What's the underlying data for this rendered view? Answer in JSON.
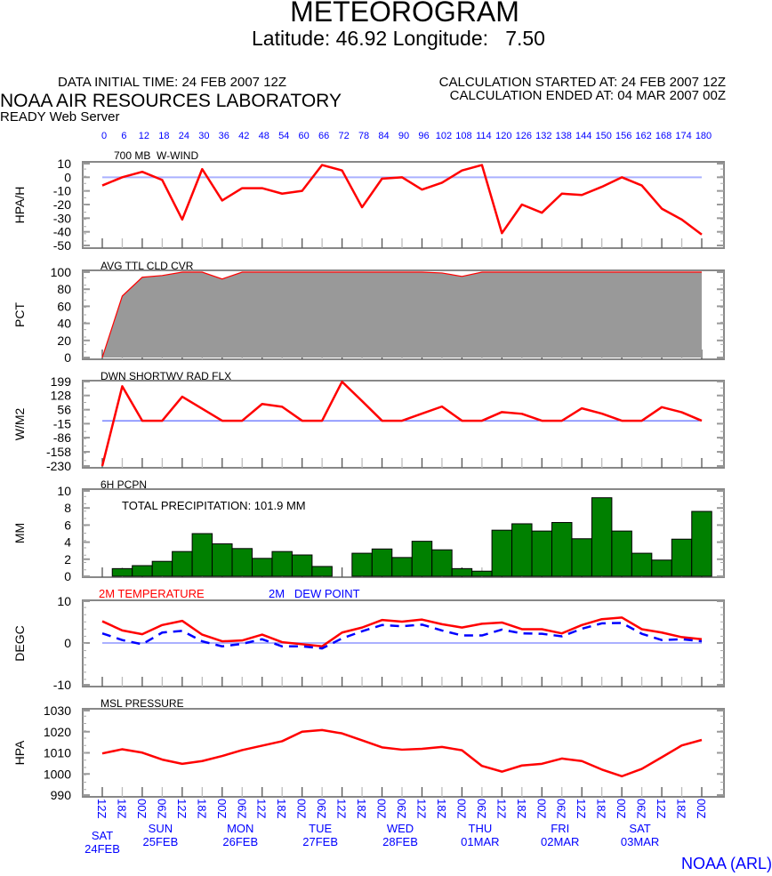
{
  "header": {
    "title": "METEOROGRAM",
    "subtitle": "Latitude: 46.92 Longitude:   7.50",
    "data_initial_time": "DATA INITIAL TIME: 24 FEB 2007 12Z",
    "organization": "NOAA AIR RESOURCES LABORATORY",
    "server": "READY Web Server",
    "calc_started": "CALCULATION STARTED AT: 24 FEB 2007 12Z",
    "calc_ended": "CALCULATION ENDED AT: 04 MAR 2007 00Z",
    "footer": "NOAA (ARL)"
  },
  "colors": {
    "line": "#ff0000",
    "dew": "#0000ff",
    "zero_line": "#aab0ff",
    "bars": "#008000",
    "cloud_fill": "#999999",
    "axis_labels": "#0000ff"
  },
  "x_axis": {
    "hours": [
      0,
      6,
      12,
      18,
      24,
      30,
      36,
      42,
      48,
      54,
      60,
      66,
      72,
      78,
      84,
      90,
      96,
      102,
      108,
      114,
      120,
      126,
      132,
      138,
      144,
      150,
      156,
      162,
      168,
      174,
      180
    ],
    "time_labels": [
      "12Z",
      "18Z",
      "00Z",
      "06Z",
      "12Z",
      "18Z",
      "00Z",
      "06Z",
      "12Z",
      "18Z",
      "00Z",
      "06Z",
      "12Z",
      "18Z",
      "00Z",
      "06Z",
      "12Z",
      "18Z",
      "00Z",
      "06Z",
      "12Z",
      "18Z",
      "00Z",
      "06Z",
      "12Z",
      "18Z",
      "00Z",
      "06Z",
      "12Z",
      "18Z",
      "00Z"
    ],
    "days": [
      {
        "day": "SAT",
        "date": "24FEB",
        "hour": 0
      },
      {
        "day": "SUN",
        "date": "25FEB",
        "hour": 18
      },
      {
        "day": "MON",
        "date": "26FEB",
        "hour": 42
      },
      {
        "day": "TUE",
        "date": "27FEB",
        "hour": 66
      },
      {
        "day": "WED",
        "date": "28FEB",
        "hour": 90
      },
      {
        "day": "THU",
        "date": "01MAR",
        "hour": 114
      },
      {
        "day": "FRI",
        "date": "02MAR",
        "hour": 138
      },
      {
        "day": "SAT",
        "date": "03MAR",
        "hour": 162
      }
    ]
  },
  "chart_data": [
    {
      "type": "line",
      "title": "700 MB  W-WIND",
      "ylabel": "HPA/H",
      "ylim": [
        -50,
        10
      ],
      "yticks": [
        10,
        0,
        -10,
        -20,
        -30,
        -40,
        -50
      ],
      "zero_line": true,
      "series": [
        {
          "values": [
            -6,
            0,
            4,
            -2,
            -31,
            6,
            -17,
            -8,
            -8,
            -12,
            -10,
            9,
            5,
            -22,
            -1,
            0,
            -9,
            -4,
            5,
            9,
            -41,
            -20,
            -26,
            -12,
            -13,
            -7,
            0,
            -6,
            -23,
            -31,
            -42
          ]
        }
      ]
    },
    {
      "type": "area",
      "title": "AVG TTL CLD CVR",
      "ylabel": "PCT",
      "ylim": [
        0,
        100
      ],
      "yticks": [
        100,
        80,
        60,
        40,
        20,
        0
      ],
      "series": [
        {
          "values": [
            0,
            72,
            94,
            96,
            100,
            100,
            92,
            100,
            100,
            100,
            100,
            100,
            100,
            100,
            100,
            100,
            100,
            99,
            95,
            100,
            100,
            100,
            100,
            100,
            100,
            100,
            100,
            100,
            100,
            100,
            100
          ]
        }
      ]
    },
    {
      "type": "line",
      "title": "DWN SHORTWV RAD FLX",
      "ylabel": "W/M2",
      "ylim": [
        -230,
        199
      ],
      "yticks": [
        199,
        128,
        56,
        -15,
        -86,
        -158,
        -230
      ],
      "zero_line": true,
      "series": [
        {
          "values": [
            -230,
            175,
            0,
            0,
            122,
            61,
            0,
            0,
            85,
            71,
            0,
            0,
            198,
            100,
            0,
            0,
            36,
            72,
            0,
            0,
            44,
            35,
            0,
            0,
            63,
            36,
            0,
            0,
            69,
            43,
            0
          ]
        }
      ]
    },
    {
      "type": "bar",
      "title": "6H PCPN",
      "ylabel": "MM",
      "ylim": [
        0,
        10
      ],
      "yticks": [
        10,
        8,
        6,
        4,
        2,
        0
      ],
      "annotation": "TOTAL PRECIPITATION: 101.9 MM",
      "series": [
        {
          "values": [
            0,
            0.9,
            1.25,
            1.75,
            2.9,
            5.0,
            3.8,
            3.25,
            2.1,
            2.9,
            2.5,
            1.15,
            0,
            2.7,
            3.2,
            2.2,
            4.1,
            3.1,
            0.9,
            0.6,
            5.4,
            6.15,
            5.3,
            6.3,
            4.4,
            9.2,
            5.3,
            2.7,
            1.9,
            4.35,
            7.6
          ]
        }
      ]
    },
    {
      "type": "line",
      "title": "",
      "ylabel": "DEGC",
      "ylim": [
        -10,
        10
      ],
      "yticks": [
        10,
        0,
        -10
      ],
      "zero_line": true,
      "series": [
        {
          "name": "2M TEMPERATURE",
          "style": "solid",
          "values": [
            5.2,
            3.0,
            2.1,
            4.3,
            5.3,
            2.0,
            0.4,
            0.6,
            2.0,
            0.2,
            -0.3,
            -0.8,
            2.5,
            3.7,
            5.5,
            5.1,
            5.6,
            4.5,
            3.7,
            4.6,
            4.9,
            3.3,
            3.3,
            2.3,
            4.3,
            5.7,
            6.1,
            3.3,
            2.5,
            1.4,
            0.9
          ]
        },
        {
          "name": "2M   DEW POINT",
          "style": "dashed",
          "values": [
            2.3,
            0.7,
            -0.3,
            2.5,
            2.9,
            0.4,
            -0.8,
            -0.2,
            0.9,
            -0.8,
            -0.8,
            -1.3,
            1.1,
            2.8,
            4.3,
            4.0,
            4.4,
            3.0,
            1.8,
            1.8,
            3.2,
            2.3,
            2.2,
            1.6,
            3.4,
            4.7,
            4.8,
            2.2,
            0.7,
            0.9,
            0.4
          ]
        }
      ]
    },
    {
      "type": "line",
      "title": "MSL PRESSURE",
      "ylabel": "HPA",
      "ylim": [
        990,
        1030
      ],
      "yticks": [
        1030,
        1020,
        1010,
        1000,
        990
      ],
      "series": [
        {
          "values": [
            1009.7,
            1011.7,
            1010.1,
            1006.8,
            1004.8,
            1006.1,
            1008.5,
            1011.3,
            1013.4,
            1015.5,
            1020.0,
            1020.8,
            1019.2,
            1015.9,
            1012.6,
            1011.5,
            1011.9,
            1012.8,
            1011.2,
            1003.8,
            1001.1,
            1004.0,
            1004.8,
            1007.3,
            1006.1,
            1002.1,
            998.9,
            1002.4,
            1007.9,
            1013.5,
            1016.1
          ]
        }
      ]
    }
  ]
}
